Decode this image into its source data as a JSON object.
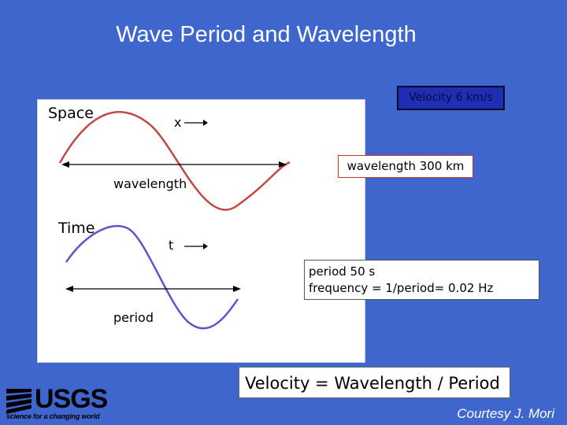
{
  "title": "Wave Period and Wavelength",
  "space_panel": {
    "space_label": "Space",
    "x_label": "x",
    "wavelength_label": "wavelength"
  },
  "time_panel": {
    "time_label": "Time",
    "t_label": "t",
    "period_label": "period"
  },
  "callouts": {
    "velocity": "Velocity 6 km/s",
    "wavelength": "wavelength 300 km",
    "period_line1": "period 50 s",
    "period_line2": "frequency = 1/period= 0.02 Hz",
    "equation": "Velocity = Wavelength / Period"
  },
  "logo": {
    "wordmark": "USGS",
    "tagline": "science for a changing world"
  },
  "credit": "Courtesy J. Mori",
  "colors": {
    "background": "#3f66cc",
    "space_wave": "#c04848",
    "time_wave": "#6a4fc8",
    "velocity_box": "#1e2fb5"
  }
}
